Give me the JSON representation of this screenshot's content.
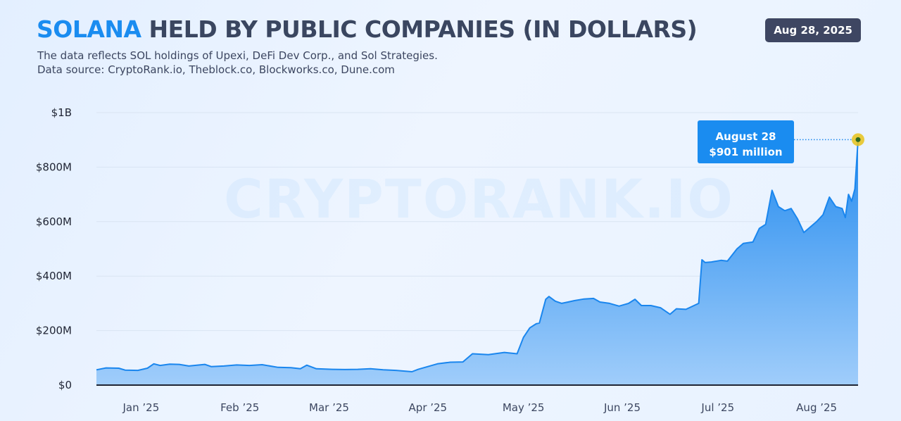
{
  "header": {
    "title_accent": "SOLANA",
    "title_rest": "HELD BY PUBLIC COMPANIES (IN DOLLARS)",
    "subtitle_line1": "The data reflects SOL holdings of Upexi, DeFi Dev Corp., and Sol Strategies.",
    "subtitle_line2": "Data source: CryptoRank.io, Theblock.co, Blockworks.co, Dune.com",
    "date_badge": "Aug 28, 2025"
  },
  "watermark": "CRYPTORANK.IO",
  "callout": {
    "line1": "August 28",
    "line2": "$901 million"
  },
  "colors": {
    "accent": "#1a8cf0",
    "title": "#3a4660",
    "badge_bg": "#3e4662",
    "highlight_point": "#e8c21a"
  },
  "chart_data": {
    "type": "area",
    "title": "SOLANA HELD BY PUBLIC COMPANIES (IN DOLLARS)",
    "xlabel": "",
    "ylabel": "",
    "ylim": [
      0,
      1000
    ],
    "y_unit": "million USD",
    "y_ticks": [
      {
        "value": 0,
        "label": "$0"
      },
      {
        "value": 200,
        "label": "$200M"
      },
      {
        "value": 400,
        "label": "$400M"
      },
      {
        "value": 600,
        "label": "$600M"
      },
      {
        "value": 800,
        "label": "$800M"
      },
      {
        "value": 1000,
        "label": "$1B"
      }
    ],
    "x_range": [
      "2025-01-01",
      "2025-08-28"
    ],
    "x_ticks": [
      {
        "date": "2025-01-15",
        "label": "Jan ’25"
      },
      {
        "date": "2025-02-15",
        "label": "Feb ’25"
      },
      {
        "date": "2025-03-15",
        "label": "Mar ’25"
      },
      {
        "date": "2025-04-15",
        "label": "Apr ’25"
      },
      {
        "date": "2025-05-15",
        "label": "May ’25"
      },
      {
        "date": "2025-06-15",
        "label": "Jun ’25"
      },
      {
        "date": "2025-07-15",
        "label": "Jul ’25"
      },
      {
        "date": "2025-08-15",
        "label": "Aug ’25"
      }
    ],
    "grid": true,
    "legend": "none",
    "highlight": {
      "date": "2025-08-28",
      "value": 901
    },
    "series": [
      {
        "values": [
          {
            "x": "2025-01-01",
            "y": 56
          },
          {
            "x": "2025-01-04",
            "y": 63
          },
          {
            "x": "2025-01-08",
            "y": 62
          },
          {
            "x": "2025-01-10",
            "y": 55
          },
          {
            "x": "2025-01-14",
            "y": 54
          },
          {
            "x": "2025-01-17",
            "y": 62
          },
          {
            "x": "2025-01-19",
            "y": 78
          },
          {
            "x": "2025-01-21",
            "y": 72
          },
          {
            "x": "2025-01-24",
            "y": 77
          },
          {
            "x": "2025-01-27",
            "y": 76
          },
          {
            "x": "2025-01-30",
            "y": 70
          },
          {
            "x": "2025-02-04",
            "y": 76
          },
          {
            "x": "2025-02-06",
            "y": 68
          },
          {
            "x": "2025-02-10",
            "y": 70
          },
          {
            "x": "2025-02-14",
            "y": 74
          },
          {
            "x": "2025-02-18",
            "y": 72
          },
          {
            "x": "2025-02-22",
            "y": 75
          },
          {
            "x": "2025-02-27",
            "y": 65
          },
          {
            "x": "2025-03-03",
            "y": 64
          },
          {
            "x": "2025-03-06",
            "y": 60
          },
          {
            "x": "2025-03-08",
            "y": 73
          },
          {
            "x": "2025-03-11",
            "y": 60
          },
          {
            "x": "2025-03-16",
            "y": 58
          },
          {
            "x": "2025-03-20",
            "y": 57
          },
          {
            "x": "2025-03-24",
            "y": 58
          },
          {
            "x": "2025-03-28",
            "y": 60
          },
          {
            "x": "2025-04-01",
            "y": 56
          },
          {
            "x": "2025-04-05",
            "y": 54
          },
          {
            "x": "2025-04-08",
            "y": 51
          },
          {
            "x": "2025-04-10",
            "y": 49
          },
          {
            "x": "2025-04-12",
            "y": 58
          },
          {
            "x": "2025-04-15",
            "y": 68
          },
          {
            "x": "2025-04-18",
            "y": 78
          },
          {
            "x": "2025-04-22",
            "y": 84
          },
          {
            "x": "2025-04-26",
            "y": 85
          },
          {
            "x": "2025-04-29",
            "y": 115
          },
          {
            "x": "2025-05-04",
            "y": 112
          },
          {
            "x": "2025-05-09",
            "y": 120
          },
          {
            "x": "2025-05-13",
            "y": 115
          },
          {
            "x": "2025-05-15",
            "y": 175
          },
          {
            "x": "2025-05-17",
            "y": 210
          },
          {
            "x": "2025-05-19",
            "y": 225
          },
          {
            "x": "2025-05-20",
            "y": 228
          },
          {
            "x": "2025-05-22",
            "y": 315
          },
          {
            "x": "2025-05-23",
            "y": 325
          },
          {
            "x": "2025-05-25",
            "y": 308
          },
          {
            "x": "2025-05-27",
            "y": 300
          },
          {
            "x": "2025-05-29",
            "y": 305
          },
          {
            "x": "2025-05-31",
            "y": 310
          },
          {
            "x": "2025-06-03",
            "y": 316
          },
          {
            "x": "2025-06-06",
            "y": 318
          },
          {
            "x": "2025-06-08",
            "y": 305
          },
          {
            "x": "2025-06-11",
            "y": 300
          },
          {
            "x": "2025-06-14",
            "y": 290
          },
          {
            "x": "2025-06-17",
            "y": 300
          },
          {
            "x": "2025-06-19",
            "y": 315
          },
          {
            "x": "2025-06-21",
            "y": 292
          },
          {
            "x": "2025-06-24",
            "y": 292
          },
          {
            "x": "2025-06-27",
            "y": 284
          },
          {
            "x": "2025-06-30",
            "y": 260
          },
          {
            "x": "2025-07-02",
            "y": 280
          },
          {
            "x": "2025-07-05",
            "y": 278
          },
          {
            "x": "2025-07-09",
            "y": 300
          },
          {
            "x": "2025-07-10",
            "y": 460
          },
          {
            "x": "2025-07-11",
            "y": 450
          },
          {
            "x": "2025-07-13",
            "y": 452
          },
          {
            "x": "2025-07-16",
            "y": 458
          },
          {
            "x": "2025-07-18",
            "y": 455
          },
          {
            "x": "2025-07-21",
            "y": 500
          },
          {
            "x": "2025-07-23",
            "y": 520
          },
          {
            "x": "2025-07-26",
            "y": 525
          },
          {
            "x": "2025-07-28",
            "y": 575
          },
          {
            "x": "2025-07-30",
            "y": 590
          },
          {
            "x": "2025-08-01",
            "y": 715
          },
          {
            "x": "2025-08-03",
            "y": 655
          },
          {
            "x": "2025-08-05",
            "y": 640
          },
          {
            "x": "2025-08-07",
            "y": 648
          },
          {
            "x": "2025-08-09",
            "y": 610
          },
          {
            "x": "2025-08-11",
            "y": 560
          },
          {
            "x": "2025-08-13",
            "y": 580
          },
          {
            "x": "2025-08-15",
            "y": 600
          },
          {
            "x": "2025-08-17",
            "y": 625
          },
          {
            "x": "2025-08-19",
            "y": 690
          },
          {
            "x": "2025-08-21",
            "y": 655
          },
          {
            "x": "2025-08-23",
            "y": 648
          },
          {
            "x": "2025-08-24",
            "y": 615
          },
          {
            "x": "2025-08-25",
            "y": 700
          },
          {
            "x": "2025-08-26",
            "y": 675
          },
          {
            "x": "2025-08-27",
            "y": 720
          },
          {
            "x": "2025-08-28",
            "y": 901
          }
        ]
      }
    ]
  }
}
